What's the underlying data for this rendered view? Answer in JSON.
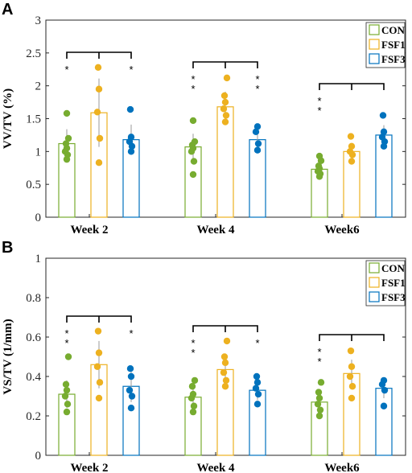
{
  "chart_data": [
    {
      "type": "bar",
      "panel_label": "A",
      "ylabel": "VV/TV (%)",
      "ylim": [
        0,
        3
      ],
      "yticks": [
        "0",
        "0.5",
        "1",
        "1.5",
        "2",
        "2.5",
        "3"
      ],
      "ytick_values": [
        0,
        0.5,
        1,
        1.5,
        2,
        2.5,
        3
      ],
      "categories": [
        "Week 2",
        "Week 4",
        "Week6"
      ],
      "legend": {
        "position": "top-right",
        "entries": [
          "CON",
          "FSF1",
          "FSF3"
        ]
      },
      "series": [
        {
          "name": "CON",
          "color": "#77ac30",
          "values": [
            1.12,
            1.07,
            0.73
          ],
          "errors": [
            0.22,
            0.2,
            0.09
          ],
          "points": [
            [
              0.88,
              0.95,
              1.0,
              1.05,
              1.12,
              1.2,
              1.58
            ],
            [
              0.65,
              0.85,
              1.0,
              1.05,
              1.1,
              1.15,
              1.47
            ],
            [
              0.62,
              0.66,
              0.7,
              0.74,
              0.78,
              0.86,
              0.93
            ]
          ]
        },
        {
          "name": "FSF1",
          "color": "#edb120",
          "values": [
            1.59,
            1.68,
            1.0
          ],
          "errors": [
            0.52,
            0.23,
            0.13
          ],
          "points": [
            [
              0.83,
              1.2,
              1.6,
              1.95,
              2.28
            ],
            [
              1.45,
              1.55,
              1.65,
              1.75,
              1.85,
              2.12
            ],
            [
              0.85,
              0.95,
              1.0,
              1.08,
              1.23
            ]
          ]
        },
        {
          "name": "FSF3",
          "color": "#0072bd",
          "values": [
            1.18,
            1.18,
            1.25
          ],
          "errors": [
            0.23,
            0.17,
            0.15
          ],
          "points": [
            [
              1.0,
              1.08,
              1.15,
              1.22,
              1.64
            ],
            [
              1.02,
              1.12,
              1.3,
              1.38
            ],
            [
              1.08,
              1.15,
              1.22,
              1.3,
              1.55
            ]
          ]
        }
      ],
      "significance": [
        {
          "category": "Week 2",
          "stars": [
            "*",
            "",
            "*"
          ]
        },
        {
          "category": "Week 4",
          "stars": [
            "**",
            "",
            "**"
          ]
        },
        {
          "category": "Week6",
          "stars": [
            "**",
            "",
            ""
          ]
        }
      ]
    },
    {
      "type": "bar",
      "panel_label": "B",
      "ylabel": "VS/TV (1/mm)",
      "ylim": [
        0,
        1
      ],
      "yticks": [
        "0",
        "0.2",
        "0.4",
        "0.6",
        "0.8",
        "1"
      ],
      "ytick_values": [
        0,
        0.2,
        0.4,
        0.6,
        0.8,
        1
      ],
      "categories": [
        "Week 2",
        "Week 4",
        "Week6"
      ],
      "legend": {
        "position": "top-right",
        "entries": [
          "CON",
          "FSF1",
          "FSF3"
        ]
      },
      "series": [
        {
          "name": "CON",
          "color": "#77ac30",
          "values": [
            0.31,
            0.295,
            0.27
          ],
          "errors": [
            0.07,
            0.05,
            0.06
          ],
          "points": [
            [
              0.22,
              0.26,
              0.3,
              0.33,
              0.36,
              0.5
            ],
            [
              0.22,
              0.25,
              0.29,
              0.31,
              0.35,
              0.38
            ],
            [
              0.2,
              0.23,
              0.26,
              0.29,
              0.32,
              0.37
            ]
          ]
        },
        {
          "name": "FSF1",
          "color": "#edb120",
          "values": [
            0.46,
            0.435,
            0.415
          ],
          "errors": [
            0.12,
            0.08,
            0.07
          ],
          "points": [
            [
              0.29,
              0.37,
              0.45,
              0.52,
              0.63
            ],
            [
              0.35,
              0.38,
              0.42,
              0.47,
              0.5,
              0.58
            ],
            [
              0.29,
              0.35,
              0.4,
              0.45,
              0.53
            ]
          ]
        },
        {
          "name": "FSF3",
          "color": "#0072bd",
          "values": [
            0.35,
            0.33,
            0.34
          ],
          "errors": [
            0.08,
            0.05,
            0.05
          ],
          "points": [
            [
              0.24,
              0.3,
              0.33,
              0.4,
              0.44
            ],
            [
              0.26,
              0.31,
              0.34,
              0.37,
              0.4
            ],
            [
              0.25,
              0.33,
              0.36,
              0.38
            ]
          ]
        }
      ],
      "significance": [
        {
          "category": "Week 2",
          "stars": [
            "**",
            "",
            "*"
          ]
        },
        {
          "category": "Week 4",
          "stars": [
            "**",
            "",
            "*"
          ]
        },
        {
          "category": "Week6",
          "stars": [
            "**",
            "",
            ""
          ]
        }
      ]
    }
  ]
}
